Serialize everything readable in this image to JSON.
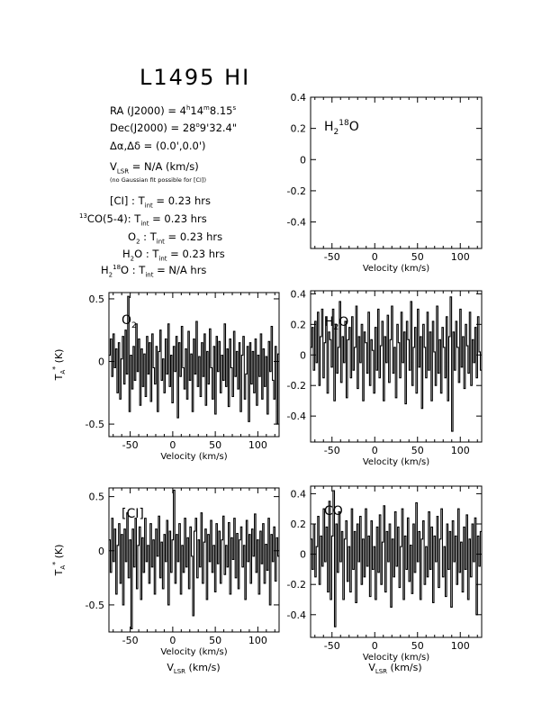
{
  "title": "L1495 HI",
  "info": {
    "ra_label": "RA (J2000) =",
    "ra_h": "4",
    "ra_m": "14",
    "ra_s": "8.15",
    "dec_label": "Dec(J2000) =",
    "dec_d": "28",
    "dec_rest": "9'32.4\"",
    "offset_label": "Δα,Δδ = (0.0',0.0')",
    "vlsr_v": "V",
    "vlsr_sub": "LSR",
    "vlsr_value": "= N/A  (km/s)",
    "note": "(no Gaussian fit possible for [CI])",
    "tint": [
      {
        "pre": "",
        "sup": "",
        "name": "[CI]",
        "time": "0.23 hrs"
      },
      {
        "pre": "13",
        "sup": "",
        "name": "CO(5-4):",
        "time": "0.23 hrs"
      },
      {
        "pre": "",
        "sup": "",
        "name": "O2",
        "time": "0.23 hrs"
      },
      {
        "pre": "",
        "sup": "",
        "name": "H2O",
        "time": "0.23 hrs"
      },
      {
        "pre": "",
        "sup": "18",
        "name": "H2O",
        "time": "N/A  hrs"
      }
    ],
    "tint_symbol": "T",
    "tint_sub": "int"
  },
  "chart_data": [
    {
      "type": "line",
      "label": "H2 18O",
      "x_range": [
        -75,
        125
      ],
      "ylim": [
        -0.57,
        0.4
      ],
      "yticks": [
        -0.4,
        -0.2,
        0,
        0.2,
        0.4
      ],
      "ytick_labels": [
        "-0.4",
        "-0.2",
        "0",
        "0.2",
        "0.4"
      ],
      "xticks": [
        -50,
        0,
        50,
        100
      ],
      "xtick_labels": [
        "-50",
        "0",
        "50",
        "100"
      ],
      "xlabel": "Velocity (km/s)",
      "ylabel": "",
      "values": []
    },
    {
      "type": "line",
      "label": "O2",
      "x_range": [
        -75,
        125
      ],
      "ylim": [
        -0.6,
        0.55
      ],
      "yticks": [
        -0.5,
        0,
        0.5
      ],
      "ytick_labels": [
        "-0.5",
        "0",
        "0.5"
      ],
      "xticks": [
        -50,
        0,
        50,
        100
      ],
      "xtick_labels": [
        "-50",
        "0",
        "50",
        "100"
      ],
      "xlabel": "Velocity (km/s)",
      "ylabel": "T*A (K)",
      "values": [
        0.05,
        0.18,
        -0.12,
        0.22,
        -0.05,
        0.1,
        -0.25,
        0.15,
        -0.3,
        0.02,
        0.2,
        -0.18,
        0.25,
        -0.1,
        0.52,
        -0.4,
        0.05,
        -0.22,
        0.12,
        -0.15,
        0.3,
        -0.08,
        0.18,
        -0.35,
        0.1,
        -0.2,
        0.06,
        -0.28,
        0.2,
        -0.1,
        0.15,
        -0.32,
        0.22,
        -0.05,
        -0.18,
        0.12,
        -0.4,
        0.08,
        0.25,
        -0.15,
        0.02,
        -0.25,
        0.18,
        -0.1,
        0.3,
        -0.2,
        0.05,
        -0.33,
        0.12,
        -0.08,
        0.2,
        -0.45,
        0.15,
        -0.12,
        0.28,
        -0.05,
        -0.22,
        0.1,
        -0.3,
        0.24,
        -0.15,
        0.06,
        -0.4,
        0.18,
        -0.1,
        0.32,
        -0.2,
        0.04,
        -0.28,
        0.15,
        -0.12,
        0.22,
        -0.35,
        0.08,
        -0.18,
        0.26,
        -0.05,
        -0.3,
        0.12,
        -0.42,
        0.2,
        -0.08,
        0.16,
        -0.25,
        0.05,
        -0.15,
        0.3,
        -0.2,
        0.1,
        -0.36,
        0.18,
        -0.05,
        -0.28,
        0.24,
        -0.12,
        0.08,
        -0.22,
        0.15,
        -0.4,
        0.05,
        0.2,
        -0.3,
        -0.1,
        0.12,
        -0.48,
        0.15,
        -0.18,
        0.08,
        -0.25,
        0.18,
        -0.35,
        0.05,
        -0.12,
        0.22,
        -0.3,
        0.1,
        -0.2,
        0.04,
        -0.42,
        0.16,
        -0.08,
        0.28,
        -0.15,
        -0.3,
        0.12,
        -0.5,
        0.06
      ]
    },
    {
      "type": "line",
      "label": "H2O",
      "x_range": [
        -75,
        125
      ],
      "ylim": [
        -0.57,
        0.42
      ],
      "yticks": [
        -0.4,
        -0.2,
        0,
        0.2,
        0.4
      ],
      "ytick_labels": [
        "-0.4",
        "-0.2",
        "0",
        "0.2",
        "0.4"
      ],
      "xticks": [
        -50,
        0,
        50,
        100
      ],
      "xtick_labels": [
        "-50",
        "0",
        "50",
        "100"
      ],
      "xlabel": "Velocity (km/s)",
      "ylabel": "",
      "values": [
        0.05,
        0.18,
        -0.1,
        0.22,
        -0.05,
        0.28,
        -0.2,
        0.12,
        0.3,
        -0.15,
        0.08,
        0.25,
        -0.25,
        0.15,
        0.1,
        -0.08,
        0.3,
        -0.3,
        0.2,
        -0.12,
        0.05,
        0.35,
        -0.18,
        0.12,
        -0.05,
        0.22,
        -0.28,
        0.1,
        0.18,
        -0.15,
        0.25,
        -0.1,
        0.05,
        0.32,
        -0.22,
        0.12,
        -0.05,
        0.2,
        -0.3,
        0.15,
        0.08,
        -0.12,
        0.28,
        -0.2,
        0.1,
        0.03,
        -0.25,
        0.18,
        -0.1,
        0.3,
        -0.15,
        0.06,
        0.22,
        -0.3,
        0.12,
        -0.05,
        0.26,
        -0.18,
        0.1,
        0.32,
        -0.12,
        0.05,
        -0.28,
        0.2,
        0.08,
        -0.15,
        0.28,
        -0.05,
        0.15,
        -0.32,
        0.22,
        0.1,
        -0.1,
        0.35,
        -0.2,
        0.05,
        0.18,
        -0.25,
        0.3,
        -0.08,
        0.12,
        -0.35,
        0.2,
        0.05,
        -0.15,
        0.28,
        -0.1,
        0.15,
        -0.3,
        0.22,
        0.02,
        -0.2,
        0.32,
        -0.12,
        0.1,
        -0.25,
        0.18,
        0.05,
        -0.15,
        0.25,
        -0.3,
        0.12,
        0.38,
        -0.5,
        0.15,
        -0.1,
        0.22,
        0.05,
        -0.18,
        0.3,
        -0.08,
        0.12,
        -0.22,
        0.2,
        0.06,
        -0.12,
        0.28,
        -0.2,
        0.1,
        -0.05,
        0.18,
        -0.15,
        0.25,
        0.02,
        -0.1
      ]
    },
    {
      "type": "line",
      "label": "[CI]",
      "x_range": [
        -75,
        125
      ],
      "ylim": [
        -0.75,
        0.58
      ],
      "yticks": [
        -0.5,
        0,
        0.5
      ],
      "ytick_labels": [
        "-0.5",
        "0",
        "0.5"
      ],
      "xticks": [
        -50,
        0,
        50,
        100
      ],
      "xtick_labels": [
        "-50",
        "0",
        "50",
        "100"
      ],
      "xlabel": "Velocity (km/s)",
      "ylabel": "T*A (K)",
      "values": [
        0.1,
        -0.2,
        0.3,
        -0.1,
        0.2,
        -0.4,
        0.05,
        0.25,
        -0.3,
        0.15,
        -0.5,
        0.2,
        -0.1,
        0.35,
        -0.25,
        0.1,
        -0.72,
        0.2,
        -0.15,
        0.3,
        -0.35,
        0.05,
        0.22,
        -0.45,
        0.12,
        -0.2,
        0.3,
        -0.1,
        0.05,
        -0.3,
        0.25,
        -0.15,
        0.1,
        -0.4,
        0.2,
        -0.05,
        0.32,
        -0.25,
        0.08,
        -0.35,
        0.15,
        -0.1,
        0.28,
        -0.5,
        0.18,
        -0.2,
        0.1,
        0.56,
        -0.3,
        0.15,
        -0.1,
        0.25,
        -0.4,
        0.05,
        -0.2,
        0.3,
        -0.15,
        0.12,
        -0.35,
        0.22,
        -0.05,
        -0.6,
        0.18,
        0.3,
        -0.25,
        0.1,
        -0.15,
        0.35,
        -0.3,
        0.08,
        0.2,
        -0.45,
        0.15,
        -0.1,
        0.28,
        -0.2,
        0.05,
        -0.38,
        0.25,
        -0.12,
        0.18,
        -0.3,
        0.1,
        0.32,
        -0.22,
        0.05,
        -0.15,
        0.26,
        -0.4,
        0.12,
        -0.08,
        0.3,
        -0.25,
        0.16,
        -0.35,
        0.1,
        0.22,
        -0.15,
        0.05,
        -0.45,
        0.28,
        -0.1,
        0.15,
        -0.3,
        0.2,
        -0.05,
        0.34,
        -0.2,
        0.1,
        -0.4,
        0.18,
        -0.12,
        0.25,
        -0.3,
        0.06,
        -0.18,
        0.3,
        -0.5,
        0.15,
        -0.1,
        0.22,
        -0.28,
        0.12,
        -0.05
      ]
    },
    {
      "type": "line",
      "label": "CO",
      "x_range": [
        -75,
        125
      ],
      "ylim": [
        -0.55,
        0.45
      ],
      "yticks": [
        -0.4,
        -0.2,
        0,
        0.2,
        0.4
      ],
      "ytick_labels": [
        "-0.4",
        "-0.2",
        "0",
        "0.2",
        "0.4"
      ],
      "xticks": [
        -50,
        0,
        50,
        100
      ],
      "xtick_labels": [
        "-50",
        "0",
        "50",
        "100"
      ],
      "xlabel": "Velocity (km/s)",
      "ylabel": "",
      "values": [
        0.1,
        -0.1,
        0.2,
        -0.15,
        0.05,
        0.25,
        -0.2,
        0.12,
        -0.08,
        0.3,
        -0.05,
        0.18,
        -0.25,
        0.35,
        -0.3,
        0.12,
        0.42,
        -0.48,
        0.2,
        -0.12,
        0.28,
        -0.05,
        0.15,
        -0.3,
        0.1,
        0.22,
        -0.18,
        0.05,
        -0.25,
        0.3,
        -0.1,
        0.15,
        -0.32,
        0.2,
        -0.05,
        0.25,
        -0.2,
        0.1,
        -0.15,
        0.3,
        -0.08,
        0.12,
        -0.28,
        0.22,
        -0.1,
        0.05,
        -0.3,
        0.18,
        -0.12,
        0.26,
        -0.2,
        0.08,
        0.32,
        -0.25,
        0.15,
        -0.05,
        0.2,
        -0.35,
        0.1,
        -0.15,
        0.28,
        -0.08,
        0.18,
        -0.22,
        0.05,
        0.3,
        -0.3,
        0.12,
        -0.1,
        0.24,
        -0.18,
        0.06,
        -0.26,
        0.2,
        -0.12,
        0.34,
        -0.05,
        0.15,
        -0.3,
        0.1,
        0.22,
        -0.2,
        0.05,
        -0.15,
        0.28,
        -0.1,
        0.18,
        -0.32,
        0.12,
        -0.05,
        0.25,
        -0.22,
        0.1,
        0.3,
        -0.15,
        0.05,
        -0.28,
        0.2,
        -0.1,
        0.15,
        -0.35,
        0.22,
        -0.05,
        0.12,
        -0.2,
        0.3,
        -0.12,
        0.08,
        -0.25,
        0.18,
        -0.1,
        0.26,
        -0.3,
        0.1,
        -0.15,
        0.2,
        -0.05,
        0.24,
        -0.4,
        0.12,
        -0.08,
        0.15
      ]
    }
  ]
}
